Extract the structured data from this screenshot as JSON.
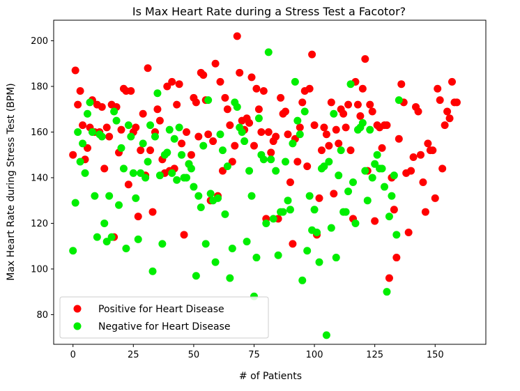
{
  "chart_data": {
    "type": "scatter",
    "title": "Is Max Heart Rate during a Stress Test a Facotor?",
    "xlabel": "# of Patients",
    "ylabel": "Max Heart Rate during Stress Test (BPM)",
    "xlim": [
      -8,
      171
    ],
    "ylim": [
      67,
      209
    ],
    "x_ticks": [
      0,
      25,
      50,
      75,
      100,
      125,
      150
    ],
    "y_ticks": [
      80,
      100,
      120,
      140,
      160,
      180,
      200
    ],
    "grid": false,
    "legend_position": "lower-left",
    "series": [
      {
        "name": "Positive for Heart Disease",
        "color": "#ff0000",
        "points": [
          [
            0,
            150
          ],
          [
            1,
            187
          ],
          [
            2,
            172
          ],
          [
            3,
            178
          ],
          [
            4,
            163
          ],
          [
            5,
            148
          ],
          [
            6,
            153
          ],
          [
            7,
            162
          ],
          [
            8,
            174
          ],
          [
            9,
            160
          ],
          [
            10,
            172
          ],
          [
            11,
            160
          ],
          [
            12,
            171
          ],
          [
            13,
            144
          ],
          [
            14,
            162
          ],
          [
            15,
            158
          ],
          [
            16,
            172
          ],
          [
            17,
            114
          ],
          [
            18,
            171
          ],
          [
            19,
            151
          ],
          [
            20,
            161
          ],
          [
            21,
            179
          ],
          [
            22,
            178
          ],
          [
            23,
            137
          ],
          [
            24,
            178
          ],
          [
            25,
            160
          ],
          [
            26,
            162
          ],
          [
            27,
            123
          ],
          [
            28,
            152
          ],
          [
            29,
            168
          ],
          [
            30,
            141
          ],
          [
            31,
            188
          ],
          [
            32,
            152
          ],
          [
            33,
            125
          ],
          [
            34,
            160
          ],
          [
            35,
            170
          ],
          [
            36,
            165
          ],
          [
            37,
            148
          ],
          [
            38,
            142
          ],
          [
            39,
            180
          ],
          [
            40,
            143
          ],
          [
            41,
            182
          ],
          [
            42,
            144
          ],
          [
            43,
            172
          ],
          [
            44,
            181
          ],
          [
            45,
            155
          ],
          [
            46,
            115
          ],
          [
            47,
            160
          ],
          [
            48,
            146
          ],
          [
            49,
            150
          ],
          [
            50,
            175
          ],
          [
            51,
            173
          ],
          [
            52,
            158
          ],
          [
            53,
            186
          ],
          [
            54,
            185
          ],
          [
            55,
            174
          ],
          [
            56,
            159
          ],
          [
            57,
            130
          ],
          [
            58,
            156
          ],
          [
            59,
            190
          ],
          [
            60,
            132
          ],
          [
            61,
            182
          ],
          [
            62,
            143
          ],
          [
            63,
            175
          ],
          [
            64,
            170
          ],
          [
            65,
            163
          ],
          [
            66,
            147
          ],
          [
            67,
            154
          ],
          [
            68,
            202
          ],
          [
            69,
            186
          ],
          [
            70,
            165
          ],
          [
            71,
            161
          ],
          [
            72,
            166
          ],
          [
            73,
            164
          ],
          [
            74,
            184
          ],
          [
            75,
            154
          ],
          [
            76,
            179
          ],
          [
            77,
            170
          ],
          [
            78,
            160
          ],
          [
            79,
            178
          ],
          [
            80,
            122
          ],
          [
            81,
            160
          ],
          [
            82,
            151
          ],
          [
            83,
            156
          ],
          [
            84,
            158
          ],
          [
            85,
            122
          ],
          [
            86,
            175
          ],
          [
            87,
            168
          ],
          [
            88,
            169
          ],
          [
            89,
            159
          ],
          [
            90,
            138
          ],
          [
            91,
            111
          ],
          [
            92,
            157
          ],
          [
            93,
            147
          ],
          [
            94,
            162
          ],
          [
            95,
            173
          ],
          [
            96,
            178
          ],
          [
            97,
            145
          ],
          [
            98,
            179
          ],
          [
            99,
            194
          ],
          [
            100,
            163
          ],
          [
            101,
            115
          ],
          [
            102,
            131
          ],
          [
            103,
            152
          ],
          [
            104,
            162
          ],
          [
            105,
            159
          ],
          [
            106,
            154
          ],
          [
            107,
            173
          ],
          [
            108,
            133
          ],
          [
            109,
            161
          ],
          [
            110,
            155
          ],
          [
            111,
            170
          ],
          [
            112,
            168
          ],
          [
            113,
            162
          ],
          [
            114,
            172
          ],
          [
            115,
            152
          ],
          [
            116,
            122
          ],
          [
            117,
            182
          ],
          [
            118,
            172
          ],
          [
            119,
            167
          ],
          [
            120,
            179
          ],
          [
            121,
            192
          ],
          [
            122,
            143
          ],
          [
            123,
            172
          ],
          [
            124,
            169
          ],
          [
            125,
            121
          ],
          [
            126,
            163
          ],
          [
            127,
            162
          ],
          [
            128,
            153
          ],
          [
            129,
            163
          ],
          [
            130,
            163
          ],
          [
            131,
            96
          ],
          [
            132,
            140
          ],
          [
            133,
            126
          ],
          [
            134,
            105
          ],
          [
            135,
            157
          ],
          [
            136,
            181
          ],
          [
            137,
            173
          ],
          [
            138,
            142
          ],
          [
            139,
            116
          ],
          [
            140,
            143
          ],
          [
            141,
            149
          ],
          [
            142,
            171
          ],
          [
            143,
            169
          ],
          [
            144,
            150
          ],
          [
            145,
            138
          ],
          [
            146,
            125
          ],
          [
            147,
            155
          ],
          [
            148,
            152
          ],
          [
            149,
            152
          ],
          [
            150,
            131
          ],
          [
            151,
            179
          ],
          [
            152,
            174
          ],
          [
            153,
            144
          ],
          [
            154,
            163
          ],
          [
            155,
            169
          ],
          [
            156,
            166
          ],
          [
            157,
            182
          ],
          [
            158,
            173
          ],
          [
            159,
            173
          ]
        ]
      },
      {
        "name": "Negative for Heart Disease",
        "color": "#00ee00",
        "points": [
          [
            0,
            108
          ],
          [
            1,
            129
          ],
          [
            2,
            160
          ],
          [
            3,
            147
          ],
          [
            4,
            155
          ],
          [
            5,
            142
          ],
          [
            6,
            168
          ],
          [
            7,
            173
          ],
          [
            8,
            160
          ],
          [
            9,
            132
          ],
          [
            10,
            114
          ],
          [
            11,
            159
          ],
          [
            12,
            158
          ],
          [
            13,
            120
          ],
          [
            14,
            112
          ],
          [
            15,
            132
          ],
          [
            16,
            114
          ],
          [
            17,
            169
          ],
          [
            18,
            165
          ],
          [
            19,
            128
          ],
          [
            20,
            153
          ],
          [
            21,
            144
          ],
          [
            22,
            109
          ],
          [
            23,
            163
          ],
          [
            24,
            158
          ],
          [
            25,
            142
          ],
          [
            26,
            131
          ],
          [
            27,
            113
          ],
          [
            28,
            142
          ],
          [
            29,
            155
          ],
          [
            30,
            140
          ],
          [
            31,
            147
          ],
          [
            32,
            163
          ],
          [
            33,
            99
          ],
          [
            34,
            158
          ],
          [
            35,
            177
          ],
          [
            36,
            141
          ],
          [
            37,
            111
          ],
          [
            38,
            150
          ],
          [
            39,
            151
          ],
          [
            40,
            161
          ],
          [
            41,
            142
          ],
          [
            42,
            157
          ],
          [
            43,
            139
          ],
          [
            44,
            162
          ],
          [
            45,
            150
          ],
          [
            46,
            140
          ],
          [
            47,
            140
          ],
          [
            48,
            146
          ],
          [
            49,
            144
          ],
          [
            50,
            136
          ],
          [
            51,
            97
          ],
          [
            52,
            132
          ],
          [
            53,
            127
          ],
          [
            54,
            154
          ],
          [
            55,
            111
          ],
          [
            56,
            174
          ],
          [
            57,
            133
          ],
          [
            58,
            130
          ],
          [
            59,
            103
          ],
          [
            60,
            131
          ],
          [
            61,
            159
          ],
          [
            62,
            152
          ],
          [
            63,
            124
          ],
          [
            64,
            145
          ],
          [
            65,
            96
          ],
          [
            66,
            109
          ],
          [
            67,
            173
          ],
          [
            68,
            171
          ],
          [
            69,
            162
          ],
          [
            70,
            160
          ],
          [
            71,
            156
          ],
          [
            72,
            112
          ],
          [
            73,
            143
          ],
          [
            74,
            132
          ],
          [
            75,
            88
          ],
          [
            76,
            105
          ],
          [
            77,
            166
          ],
          [
            78,
            150
          ],
          [
            79,
            148
          ],
          [
            80,
            120
          ],
          [
            81,
            195
          ],
          [
            82,
            148
          ],
          [
            83,
            122
          ],
          [
            84,
            143
          ],
          [
            85,
            106
          ],
          [
            86,
            125
          ],
          [
            87,
            125
          ],
          [
            88,
            147
          ],
          [
            89,
            130
          ],
          [
            90,
            126
          ],
          [
            91,
            155
          ],
          [
            92,
            182
          ],
          [
            93,
            165
          ],
          [
            94,
            159
          ],
          [
            95,
            95
          ],
          [
            96,
            169
          ],
          [
            97,
            108
          ],
          [
            98,
            132
          ],
          [
            99,
            117
          ],
          [
            100,
            126
          ],
          [
            101,
            116
          ],
          [
            102,
            103
          ],
          [
            103,
            144
          ],
          [
            104,
            145
          ],
          [
            105,
            71
          ],
          [
            106,
            147
          ],
          [
            107,
            118
          ],
          [
            108,
            168
          ],
          [
            109,
            105
          ],
          [
            110,
            141
          ],
          [
            111,
            152
          ],
          [
            112,
            125
          ],
          [
            113,
            125
          ],
          [
            114,
            134
          ],
          [
            115,
            181
          ],
          [
            116,
            138
          ],
          [
            117,
            120
          ],
          [
            118,
            161
          ],
          [
            119,
            162
          ],
          [
            120,
            164
          ],
          [
            121,
            143
          ],
          [
            122,
            130
          ],
          [
            123,
            161
          ],
          [
            124,
            140
          ],
          [
            125,
            146
          ],
          [
            126,
            150
          ],
          [
            127,
            144
          ],
          [
            128,
            144
          ],
          [
            129,
            136
          ],
          [
            130,
            90
          ],
          [
            131,
            123
          ],
          [
            132,
            132
          ],
          [
            133,
            141
          ],
          [
            134,
            115
          ],
          [
            135,
            174
          ]
        ]
      }
    ]
  }
}
